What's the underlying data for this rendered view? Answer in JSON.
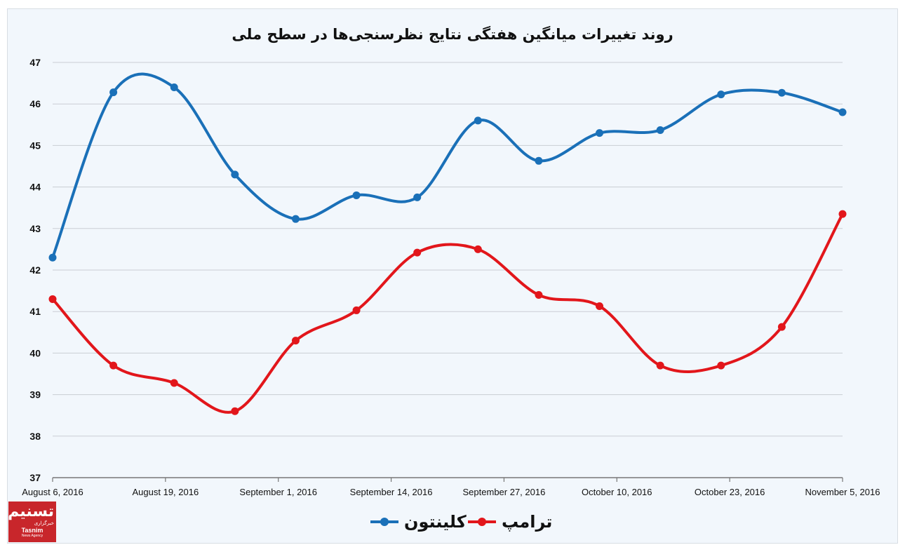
{
  "chart_data": {
    "type": "line",
    "title": "روند تغییرات میانگین هفتگی نتایج نظرسنجی‌ها در سطح ملی",
    "xlabel": "",
    "ylabel": "",
    "ylim": [
      37,
      47
    ],
    "yticks": [
      "37",
      "38",
      "39",
      "40",
      "41",
      "42",
      "43",
      "44",
      "45",
      "46",
      "47"
    ],
    "xlim": [
      "2016-08-06",
      "2016-11-05"
    ],
    "xtick_labels": [
      {
        "date": "2016-08-06",
        "label": "August 6, 2016"
      },
      {
        "date": "2016-08-19",
        "label": "August 19, 2016"
      },
      {
        "date": "2016-09-01",
        "label": "September 1, 2016"
      },
      {
        "date": "2016-09-14",
        "label": "September 14, 2016"
      },
      {
        "date": "2016-09-27",
        "label": "September 27, 2016"
      },
      {
        "date": "2016-10-10",
        "label": "October 10, 2016"
      },
      {
        "date": "2016-10-23",
        "label": "October 23, 2016"
      },
      {
        "date": "2016-11-05",
        "label": "November 5, 2016"
      }
    ],
    "x": [
      "2016-08-06",
      "2016-08-13",
      "2016-08-20",
      "2016-08-27",
      "2016-09-03",
      "2016-09-10",
      "2016-09-17",
      "2016-09-24",
      "2016-10-01",
      "2016-10-08",
      "2016-10-15",
      "2016-10-22",
      "2016-10-29",
      "2016-11-05"
    ],
    "series": [
      {
        "name": "کلینتون",
        "color": "#1a70b8",
        "values": [
          42.3,
          46.28,
          46.4,
          44.3,
          43.23,
          43.8,
          43.75,
          45.6,
          44.63,
          45.3,
          45.37,
          46.23,
          46.27,
          45.8
        ]
      },
      {
        "name": "ترامپ",
        "color": "#e2161b",
        "values": [
          41.3,
          39.7,
          39.28,
          38.6,
          40.3,
          41.03,
          42.42,
          42.5,
          41.4,
          41.13,
          39.7,
          39.7,
          40.63,
          43.35
        ]
      }
    ],
    "grid": true,
    "legend": "bottom-center"
  },
  "logo": {
    "mark": "تسنیم",
    "sub": "خبرگزاری",
    "name_en": "Tasnim",
    "tagline_en": "News Agency",
    "color": "#c8262b"
  }
}
